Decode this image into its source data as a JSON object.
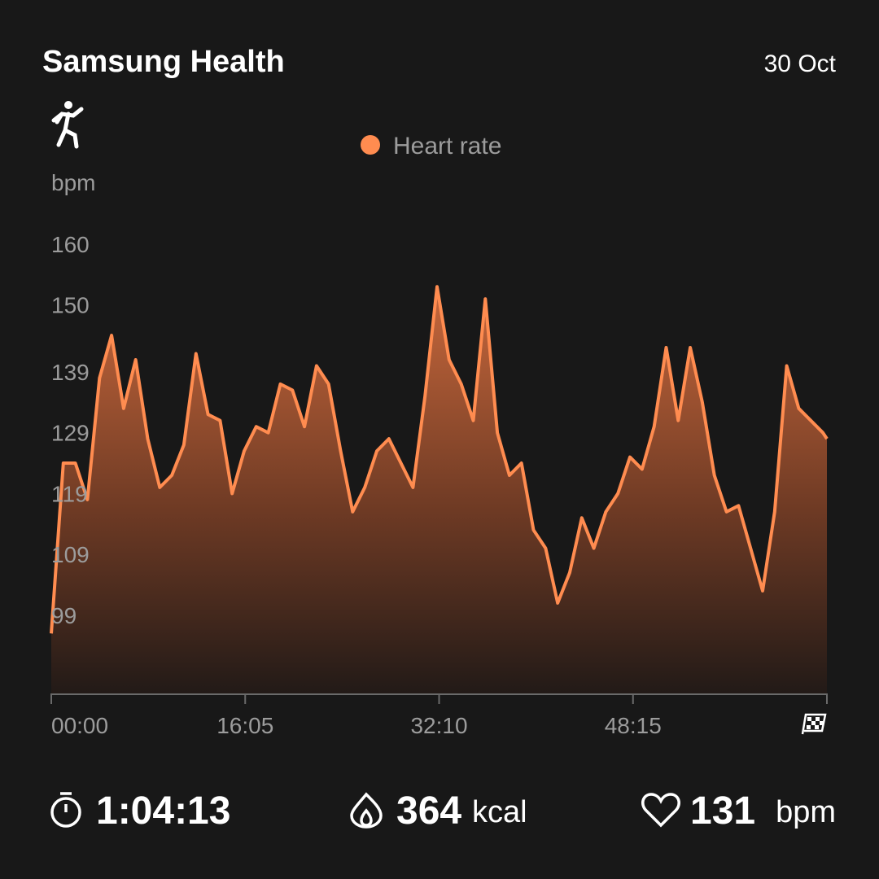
{
  "header": {
    "title": "Samsung Health",
    "date": "30 Oct"
  },
  "chart_data": {
    "type": "area",
    "legend": "Heart rate",
    "ylabel": "bpm",
    "color": "#ff8c50",
    "x": [
      0,
      60,
      120,
      180,
      240,
      300,
      360,
      420,
      480,
      540,
      600,
      660,
      720,
      780,
      840,
      900,
      960,
      1020,
      1080,
      1140,
      1200,
      1260,
      1320,
      1380,
      1440,
      1500,
      1560,
      1620,
      1680,
      1740,
      1800,
      1860,
      1920,
      1980,
      2040,
      2100,
      2160,
      2220,
      2280,
      2340,
      2400,
      2460,
      2520,
      2580,
      2640,
      2700,
      2760,
      2820,
      2880,
      2940,
      3000,
      3060,
      3120,
      3180,
      3240,
      3300,
      3360,
      3420,
      3480,
      3540,
      3600,
      3660,
      3720,
      3780,
      3840,
      3860
    ],
    "values": [
      96,
      124,
      124,
      118,
      138,
      145,
      133,
      141,
      128,
      120,
      122,
      127,
      142,
      132,
      131,
      119,
      126,
      130,
      129,
      137,
      136,
      130,
      140,
      137,
      126,
      116,
      120,
      126,
      128,
      124,
      120,
      135,
      153,
      141,
      137,
      131,
      151,
      129,
      122,
      124,
      113,
      110,
      101,
      106,
      115,
      110,
      116,
      119,
      125,
      123,
      130,
      143,
      131,
      143,
      134,
      122,
      116,
      117,
      110,
      103,
      116,
      140,
      133,
      131,
      129,
      128
    ],
    "xlim": [
      0,
      3860
    ],
    "xticks": [
      {
        "value": 0,
        "label": "00:00"
      },
      {
        "value": 965,
        "label": "16:05"
      },
      {
        "value": 1930,
        "label": "32:10"
      },
      {
        "value": 2895,
        "label": "48:15"
      }
    ],
    "ylim": [
      86,
      160
    ],
    "yticks": [
      160,
      150,
      139,
      129,
      119,
      109,
      99
    ]
  },
  "stats": {
    "duration": "1:04:13",
    "calories": 364,
    "calories_unit": "kcal",
    "heart_rate": 131,
    "heart_rate_unit": "bpm"
  }
}
